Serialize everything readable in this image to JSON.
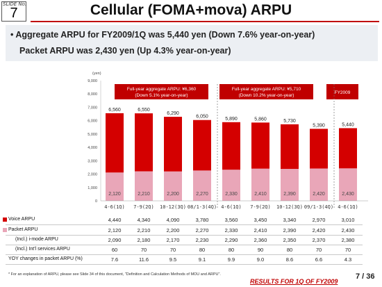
{
  "slide": {
    "label": "SLIDE No.",
    "number": "7"
  },
  "title": "Cellular (FOMA+mova) ARPU",
  "headline": {
    "line1": "• Aggregate ARPU for FY2009/1Q was 5,440 yen (Down 7.6% year-on-year)",
    "line2": "Packet ARPU was 2,430 yen (Up 4.3% year-on-year)"
  },
  "chart_data": {
    "type": "bar",
    "ylabel": "(yen)",
    "ylim": [
      0,
      9000
    ],
    "yticks": [
      "0",
      "1,000",
      "2,000",
      "3,000",
      "4,000",
      "5,000",
      "6,000",
      "7,000",
      "8,000",
      "9,000"
    ],
    "categories": [
      "4-6(1Q)",
      "7-9(2Q)",
      "10-12(3Q)",
      "08/1-3(4Q)",
      "4-6(1Q)",
      "7-9(2Q)",
      "10-12(3Q)",
      "09/1-3(4Q)",
      "4-6(1Q)"
    ],
    "series": [
      {
        "name": "Voice ARPU",
        "color": "#d40000",
        "values": [
          4440,
          4340,
          4090,
          3780,
          3560,
          3450,
          3340,
          2970,
          3010
        ]
      },
      {
        "name": "Packet ARPU",
        "color": "#e9a6b8",
        "values": [
          2120,
          2210,
          2200,
          2270,
          2330,
          2410,
          2390,
          2420,
          2430
        ]
      }
    ],
    "totals": [
      "6,560",
      "6,550",
      "6,290",
      "6,050",
      "5,890",
      "5,860",
      "5,730",
      "5,390",
      "5,440"
    ],
    "packet_labels": [
      "2,120",
      "2,210",
      "2,200",
      "2,270",
      "2,330",
      "2,410",
      "2,390",
      "2,420",
      "2,430"
    ],
    "groups": [
      {
        "label_1": "Full-year aggregate ARPU: ¥6,360",
        "label_2": "(Down 5.1% year-on-year)"
      },
      {
        "label_1": "Full-year aggregate ARPU: ¥5,710",
        "label_2": "(Down 10.2% year-on-year)"
      },
      {
        "label_1": "FY2009",
        "label_2": ""
      }
    ],
    "accent": "#c00000"
  },
  "table": {
    "rows": [
      {
        "label": "Voice ARPU",
        "swatch": "#d40000",
        "values": [
          "4,440",
          "4,340",
          "4,090",
          "3,780",
          "3,560",
          "3,450",
          "3,340",
          "2,970",
          "3,010"
        ]
      },
      {
        "label": "Packet ARPU",
        "swatch": "#e9a6b8",
        "values": [
          "2,120",
          "2,210",
          "2,200",
          "2,270",
          "2,330",
          "2,410",
          "2,390",
          "2,420",
          "2,430"
        ]
      },
      {
        "label": "(Incl.) i-mode ARPU",
        "swatch": "",
        "values": [
          "2,090",
          "2,180",
          "2,170",
          "2,230",
          "2,290",
          "2,360",
          "2,350",
          "2,370",
          "2,380"
        ]
      },
      {
        "label": "(Incl.) Int'l services ARPU",
        "swatch": "",
        "values": [
          "60",
          "70",
          "70",
          "80",
          "80",
          "90",
          "80",
          "70",
          "70"
        ]
      },
      {
        "label": "YOY changes in packet ARPU (%)",
        "swatch": "",
        "values": [
          "7.6",
          "11.6",
          "9.5",
          "9.1",
          "9.9",
          "9.0",
          "8.6",
          "6.6",
          "4.3"
        ]
      }
    ]
  },
  "footnote": "* For an explanation of ARPU, please see Slide 34 of this document, \"Definition and Calculation Methods of MOU and ARPU\".",
  "footer": {
    "brand": "RESULTS FOR 1Q OF FY2009",
    "page": "7 / 36"
  }
}
